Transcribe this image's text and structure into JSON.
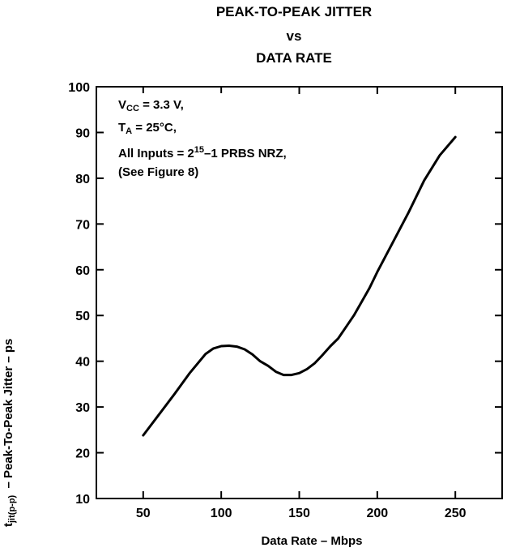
{
  "title": {
    "line1": "PEAK-TO-PEAK JITTER",
    "line2": "vs",
    "line3": "DATA RATE"
  },
  "annotation": {
    "vcc_main": "V",
    "vcc_sub": "CC",
    "vcc_rest": " = 3.3 V,",
    "ta_main": "T",
    "ta_sub": "A",
    "ta_rest": " = 25°C,",
    "inputs_pre": "All Inputs = 2",
    "inputs_sup": "15",
    "inputs_post": "–1 PRBS NRZ,",
    "see": "(See Figure 8)"
  },
  "ylabel": {
    "main": "t",
    "sub": "jit(p-p)",
    "rest": "  – Peak-To-Peak Jitter – ps"
  },
  "chart_data": {
    "type": "line",
    "title": "PEAK-TO-PEAK JITTER vs DATA RATE",
    "xlabel": "Data Rate – Mbps",
    "ylabel": "tjit(p-p) – Peak-To-Peak Jitter – ps",
    "xlim": [
      20,
      280
    ],
    "ylim": [
      10,
      100
    ],
    "xticks": [
      50,
      100,
      150,
      200,
      250
    ],
    "yticks": [
      10,
      20,
      30,
      40,
      50,
      60,
      70,
      80,
      90,
      100
    ],
    "grid": false,
    "series": [
      {
        "values": [
          [
            50,
            23.8
          ],
          [
            60,
            28.3
          ],
          [
            70,
            32.8
          ],
          [
            80,
            37.5
          ],
          [
            90,
            41.6
          ],
          [
            95,
            42.8
          ],
          [
            100,
            43.3
          ],
          [
            105,
            43.4
          ],
          [
            110,
            43.2
          ],
          [
            115,
            42.6
          ],
          [
            120,
            41.5
          ],
          [
            125,
            40.0
          ],
          [
            130,
            39.0
          ],
          [
            135,
            37.7
          ],
          [
            140,
            37.0
          ],
          [
            145,
            37.0
          ],
          [
            150,
            37.4
          ],
          [
            155,
            38.3
          ],
          [
            160,
            39.6
          ],
          [
            165,
            41.4
          ],
          [
            170,
            43.3
          ],
          [
            175,
            45.0
          ],
          [
            180,
            47.5
          ],
          [
            185,
            50.0
          ],
          [
            190,
            53.0
          ],
          [
            195,
            56.0
          ],
          [
            200,
            59.5
          ],
          [
            210,
            66.0
          ],
          [
            220,
            72.5
          ],
          [
            230,
            79.5
          ],
          [
            240,
            85.0
          ],
          [
            250,
            89.0
          ]
        ]
      }
    ]
  }
}
